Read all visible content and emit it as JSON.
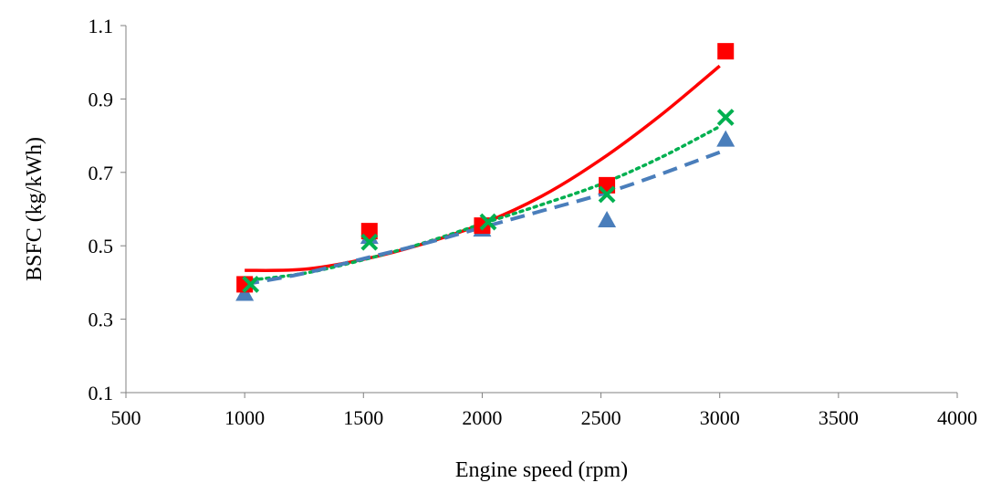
{
  "chart_data": {
    "type": "scatter",
    "title": "",
    "xlabel": "Engine speed (rpm)",
    "ylabel": "BSFC (kg/kWh)",
    "xlim": [
      500,
      4000
    ],
    "ylim": [
      0.1,
      1.1
    ],
    "xticks": [
      500,
      1000,
      1500,
      2000,
      2500,
      3000,
      3500,
      4000
    ],
    "yticks": [
      0.1,
      0.3,
      0.5,
      0.7,
      0.9,
      1.1
    ],
    "xtick_labels": [
      "500",
      "1000",
      "1500",
      "2000",
      "2500",
      "3000",
      "3500",
      "4000"
    ],
    "ytick_labels": [
      "0.1",
      "0.3",
      "0.5",
      "0.7",
      "0.9",
      "1.1"
    ],
    "grid": false,
    "legend": "none",
    "series": [
      {
        "marker": "square",
        "color": "#ff0000",
        "points": [
          [
            1000,
            0.395
          ],
          [
            1525,
            0.54
          ],
          [
            2000,
            0.555
          ],
          [
            2525,
            0.665
          ],
          [
            3025,
            1.03
          ]
        ],
        "trendline": {
          "style": "solid",
          "color": "#ff0000",
          "x": [
            1000,
            1250,
            1500,
            1750,
            2000,
            2250,
            2500,
            2750,
            3000
          ],
          "y": [
            0.433,
            0.436,
            0.463,
            0.505,
            0.56,
            0.635,
            0.735,
            0.855,
            0.99
          ]
        }
      },
      {
        "marker": "cross",
        "color": "#00b050",
        "points": [
          [
            1025,
            0.395
          ],
          [
            1525,
            0.51
          ],
          [
            2025,
            0.565
          ],
          [
            2525,
            0.64
          ],
          [
            3025,
            0.85
          ]
        ],
        "trendline": {
          "style": "dotted",
          "color": "#00b050",
          "x": [
            1000,
            1250,
            1500,
            1750,
            2000,
            2250,
            2500,
            2750,
            3000
          ],
          "y": [
            0.405,
            0.425,
            0.462,
            0.507,
            0.56,
            0.612,
            0.668,
            0.74,
            0.825
          ]
        }
      },
      {
        "marker": "triangle",
        "color": "#4a7ebb",
        "points": [
          [
            1000,
            0.37
          ],
          [
            1525,
            0.525
          ],
          [
            2000,
            0.545
          ],
          [
            2525,
            0.57
          ],
          [
            3025,
            0.79
          ]
        ],
        "trendline": {
          "style": "dashed",
          "color": "#4a7ebb",
          "x": [
            1000,
            1250,
            1500,
            1750,
            2000,
            2250,
            2500,
            2750,
            3000
          ],
          "y": [
            0.395,
            0.425,
            0.465,
            0.505,
            0.55,
            0.595,
            0.64,
            0.695,
            0.755
          ]
        }
      }
    ]
  }
}
